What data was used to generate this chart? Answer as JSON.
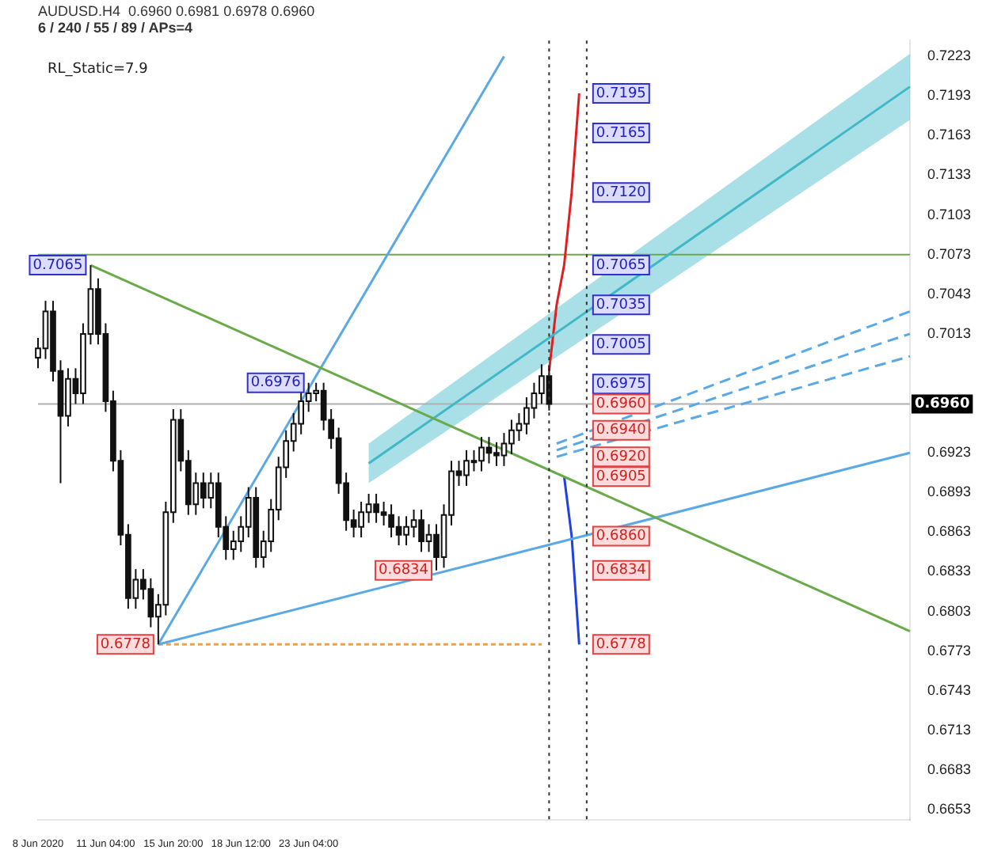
{
  "chart_data": {
    "type": "candlestick",
    "title": "AUDUSD.H4  0.6960 0.6981 0.6978 0.6960",
    "subtitle": "6 / 240 / 55 / 89 / APs=4",
    "annotations": [
      "RL_Static=7.9",
      {
        "text": "0.7065",
        "y": 0.7065
      },
      {
        "text": "0.6976",
        "y": 0.6976
      },
      {
        "text": "0.6834",
        "y": 0.6834
      },
      {
        "text": "0.6778",
        "y": 0.6778
      },
      {
        "text": "0.7195",
        "y": 0.7195
      },
      {
        "text": "0.7165",
        "y": 0.7165
      },
      {
        "text": "0.7120",
        "y": 0.712
      },
      {
        "text": "0.7065",
        "y": 0.7065
      },
      {
        "text": "0.7035",
        "y": 0.7035
      },
      {
        "text": "0.7005",
        "y": 0.7005
      },
      {
        "text": "0.6975",
        "y": 0.6975
      },
      {
        "text": "0.6960",
        "y": 0.696
      },
      {
        "text": "0.6940",
        "y": 0.694
      },
      {
        "text": "0.6920",
        "y": 0.692
      },
      {
        "text": "0.6905",
        "y": 0.6905
      },
      {
        "text": "0.6860",
        "y": 0.686
      },
      {
        "text": "0.6834",
        "y": 0.6834
      },
      {
        "text": "0.6778",
        "y": 0.6778
      }
    ],
    "categories": [
      "8 Jun 2020",
      null,
      null,
      null,
      null,
      null,
      null,
      null,
      null,
      "11 Jun 04:00",
      null,
      null,
      null,
      null,
      null,
      null,
      null,
      null,
      "15 Jun 20:00",
      null,
      null,
      null,
      null,
      null,
      null,
      null,
      null,
      "18 Jun 12:00",
      null,
      null,
      null,
      null,
      null,
      null,
      null,
      null,
      "23 Jun 04:00",
      null,
      null,
      null,
      null,
      null,
      null,
      null,
      null,
      null,
      null,
      null,
      null,
      null,
      null,
      null,
      null,
      null,
      null,
      null,
      null,
      null,
      null,
      null,
      null,
      null,
      null,
      null,
      null,
      null,
      null,
      null,
      null,
      null,
      null,
      null,
      null,
      null,
      null,
      null,
      null,
      null,
      null,
      null,
      null,
      null,
      null,
      null,
      null,
      null,
      null,
      null,
      null,
      null,
      null,
      null,
      null,
      null,
      null,
      null,
      null,
      null,
      null,
      null,
      null,
      null,
      null,
      null,
      null,
      null,
      null,
      null,
      null,
      null,
      null,
      null,
      null,
      null,
      null,
      null,
      null
    ],
    "ohlc": [
      [
        0.6995,
        0.701,
        0.6987,
        0.7002
      ],
      [
        0.7002,
        0.7038,
        0.6994,
        0.703
      ],
      [
        0.703,
        0.7038,
        0.6977,
        0.6985
      ],
      [
        0.6985,
        0.6993,
        0.69,
        0.6951
      ],
      [
        0.6951,
        0.6987,
        0.6943,
        0.6979
      ],
      [
        0.6979,
        0.6987,
        0.696,
        0.6968
      ],
      [
        0.6968,
        0.7021,
        0.696,
        0.7013
      ],
      [
        0.7013,
        0.7065,
        0.7005,
        0.7047
      ],
      [
        0.7047,
        0.7055,
        0.7005,
        0.7013
      ],
      [
        0.7013,
        0.7021,
        0.6954,
        0.6962
      ],
      [
        0.6962,
        0.697,
        0.6909,
        0.6917
      ],
      [
        0.6917,
        0.6925,
        0.6853,
        0.6861
      ],
      [
        0.6861,
        0.6869,
        0.6805,
        0.6813
      ],
      [
        0.6813,
        0.6835,
        0.6805,
        0.6827
      ],
      [
        0.6827,
        0.6835,
        0.6812,
        0.682
      ],
      [
        0.682,
        0.6828,
        0.6791,
        0.6799
      ],
      [
        0.6799,
        0.6816,
        0.6778,
        0.6808
      ],
      [
        0.6808,
        0.6886,
        0.68,
        0.6878
      ],
      [
        0.6878,
        0.6956,
        0.687,
        0.6948
      ],
      [
        0.6948,
        0.6956,
        0.6909,
        0.6917
      ],
      [
        0.6917,
        0.6925,
        0.6876,
        0.6884
      ],
      [
        0.6884,
        0.6908,
        0.6876,
        0.69
      ],
      [
        0.69,
        0.6908,
        0.6881,
        0.6889
      ],
      [
        0.6889,
        0.6908,
        0.6881,
        0.69
      ],
      [
        0.69,
        0.6908,
        0.6859,
        0.6867
      ],
      [
        0.6867,
        0.6875,
        0.6842,
        0.685
      ],
      [
        0.685,
        0.6864,
        0.6842,
        0.6856
      ],
      [
        0.6856,
        0.6875,
        0.6848,
        0.6867
      ],
      [
        0.6867,
        0.6897,
        0.6859,
        0.6889
      ],
      [
        0.6889,
        0.6897,
        0.6836,
        0.6844
      ],
      [
        0.6844,
        0.6864,
        0.6836,
        0.6856
      ],
      [
        0.6856,
        0.6888,
        0.6848,
        0.688
      ],
      [
        0.688,
        0.692,
        0.6872,
        0.6912
      ],
      [
        0.6912,
        0.694,
        0.6904,
        0.6932
      ],
      [
        0.6932,
        0.6953,
        0.6924,
        0.6945
      ],
      [
        0.6945,
        0.697,
        0.6937,
        0.6962
      ],
      [
        0.6962,
        0.6976,
        0.6954,
        0.6968
      ],
      [
        0.6968,
        0.6976,
        0.6962,
        0.697
      ],
      [
        0.697,
        0.6976,
        0.694,
        0.6948
      ],
      [
        0.6948,
        0.6956,
        0.6926,
        0.6934
      ],
      [
        0.6934,
        0.6942,
        0.6892,
        0.69
      ],
      [
        0.69,
        0.6908,
        0.6864,
        0.6872
      ],
      [
        0.6872,
        0.688,
        0.6859,
        0.6867
      ],
      [
        0.6867,
        0.6886,
        0.6859,
        0.6878
      ],
      [
        0.6878,
        0.6892,
        0.687,
        0.6884
      ],
      [
        0.6884,
        0.6892,
        0.687,
        0.6878
      ],
      [
        0.6878,
        0.6886,
        0.6868,
        0.6876
      ],
      [
        0.6876,
        0.6884,
        0.6859,
        0.6867
      ],
      [
        0.6867,
        0.6875,
        0.6853,
        0.6861
      ],
      [
        0.6861,
        0.6875,
        0.6853,
        0.6867
      ],
      [
        0.6867,
        0.688,
        0.6859,
        0.6872
      ],
      [
        0.6872,
        0.688,
        0.6848,
        0.6856
      ],
      [
        0.6856,
        0.6869,
        0.6848,
        0.6861
      ],
      [
        0.6861,
        0.6869,
        0.6834,
        0.6844
      ],
      [
        0.6844,
        0.6884,
        0.6836,
        0.6876
      ],
      [
        0.6876,
        0.6917,
        0.6868,
        0.6909
      ],
      [
        0.6909,
        0.6917,
        0.6898,
        0.6906
      ],
      [
        0.6906,
        0.6925,
        0.6898,
        0.6917
      ],
      [
        0.6917,
        0.6925,
        0.6909,
        0.6917
      ],
      [
        0.6917,
        0.6935,
        0.6909,
        0.6927
      ],
      [
        0.6927,
        0.6935,
        0.6915,
        0.6923
      ],
      [
        0.6923,
        0.6931,
        0.6913,
        0.6921
      ],
      [
        0.6921,
        0.6938,
        0.6913,
        0.693
      ],
      [
        0.693,
        0.6948,
        0.6922,
        0.694
      ],
      [
        0.694,
        0.6953,
        0.6932,
        0.6945
      ],
      [
        0.6945,
        0.6965,
        0.6937,
        0.6957
      ],
      [
        0.6957,
        0.6976,
        0.6949,
        0.6968
      ],
      [
        0.6968,
        0.699,
        0.696,
        0.6981
      ],
      [
        0.6981,
        0.6989,
        0.6955,
        0.696
      ],
      null,
      null,
      null,
      null,
      null,
      null,
      null,
      null,
      null,
      null,
      null,
      null,
      null,
      null,
      null,
      null,
      null,
      null,
      null,
      null,
      null,
      null,
      null,
      null,
      null,
      null,
      null,
      null,
      null,
      null,
      null,
      null,
      null,
      null,
      null,
      null,
      null,
      null,
      null,
      null,
      null,
      null,
      null,
      null,
      null,
      null,
      null,
      null
    ],
    "series": [
      {
        "type": "line",
        "color": "#6aaa4a",
        "values": [
          null,
          null,
          null,
          null,
          null,
          null,
          null,
          0.7065,
          null,
          null,
          null,
          null,
          null,
          null,
          null,
          null,
          null,
          null,
          null,
          null,
          null,
          null,
          null,
          null,
          null,
          null,
          null,
          null,
          null,
          null,
          null,
          null,
          null,
          null,
          null,
          null,
          null,
          null,
          null,
          null,
          null,
          null,
          null,
          null,
          null,
          null,
          null,
          null,
          null,
          null,
          null,
          null,
          null,
          null,
          null,
          null,
          null,
          null,
          null,
          null,
          null,
          null,
          null,
          null,
          null,
          null,
          null,
          null,
          null,
          null,
          null,
          null,
          null,
          null,
          null,
          null,
          null,
          null,
          null,
          null,
          null,
          null,
          null,
          null,
          null,
          null,
          null,
          null,
          null,
          null,
          null,
          null,
          null,
          null,
          null,
          null,
          null,
          null,
          null,
          null,
          null,
          null,
          null,
          null,
          null,
          null,
          null,
          null,
          null,
          null,
          null,
          null,
          null,
          null,
          null,
          null,
          0.6788
        ]
      },
      {
        "type": "line",
        "color": "#5aa9e6",
        "values": [
          null,
          null,
          null,
          null,
          null,
          null,
          null,
          null,
          null,
          null,
          null,
          null,
          null,
          null,
          null,
          null,
          0.6778,
          null,
          null,
          null,
          null,
          null,
          null,
          null,
          null,
          null,
          null,
          null,
          null,
          null,
          null,
          null,
          null,
          null,
          null,
          null,
          null,
          null,
          null,
          null,
          null,
          null,
          null,
          null,
          null,
          null,
          null,
          null,
          null,
          null,
          null,
          null,
          null,
          null,
          null,
          null,
          null,
          null,
          null,
          null,
          null,
          null,
          null,
          null,
          null,
          null,
          null,
          null,
          null,
          null,
          null,
          null,
          null,
          null,
          null,
          null,
          null,
          null,
          null,
          null,
          null,
          null,
          null,
          null,
          null,
          null,
          null,
          null,
          null,
          null,
          null,
          null,
          null,
          null,
          null,
          null,
          null,
          null,
          null,
          null,
          null,
          null,
          null,
          null,
          null,
          null,
          null,
          null,
          null,
          null,
          null,
          null,
          null,
          null,
          null,
          null,
          0.6923
        ]
      },
      {
        "type": "line",
        "color": "#5aa9e6",
        "values": [
          null,
          null,
          null,
          null,
          null,
          null,
          null,
          null,
          null,
          null,
          null,
          null,
          null,
          null,
          null,
          null,
          0.6778,
          null,
          null,
          null,
          null,
          null,
          null,
          null,
          null,
          null,
          null,
          null,
          null,
          null,
          null,
          null,
          null,
          null,
          null,
          null,
          null,
          null,
          null,
          null,
          null,
          null,
          null,
          null,
          null,
          null,
          null,
          null,
          null,
          null,
          null,
          null,
          null,
          null,
          null,
          null,
          null,
          null,
          null,
          null,
          null,
          null,
          0.7223,
          null,
          null,
          null,
          null,
          null,
          null,
          null,
          null,
          null,
          null,
          null,
          null,
          null,
          null,
          null,
          null,
          null,
          null,
          null,
          null,
          null,
          null,
          null,
          null,
          null,
          null,
          null,
          null,
          null,
          null,
          null,
          null,
          null,
          null,
          null,
          null,
          null,
          null,
          null,
          null,
          null,
          null,
          null,
          null,
          null,
          null,
          null,
          null,
          null,
          null,
          null,
          null,
          null,
          null
        ]
      },
      {
        "type": "line",
        "color": "#f0a040",
        "line_style": "dotted",
        "values": [
          null,
          null,
          null,
          null,
          null,
          null,
          null,
          null,
          null,
          null,
          null,
          null,
          null,
          null,
          null,
          null,
          0.6778,
          null,
          null,
          null,
          null,
          null,
          null,
          null,
          null,
          null,
          null,
          null,
          null,
          null,
          null,
          null,
          null,
          null,
          null,
          null,
          null,
          null,
          null,
          null,
          null,
          null,
          null,
          null,
          null,
          null,
          null,
          null,
          null,
          null,
          null,
          null,
          null,
          null,
          null,
          null,
          null,
          null,
          null,
          null,
          null,
          null,
          null,
          null,
          null,
          null,
          null,
          0.6778,
          null,
          null,
          null,
          null,
          null,
          null,
          null,
          null,
          null,
          null,
          null,
          null,
          null,
          null,
          null,
          null,
          null,
          null,
          null,
          null,
          null,
          null,
          null,
          null,
          null,
          null,
          null,
          null,
          null,
          null,
          null,
          null,
          null,
          null,
          null,
          null,
          null,
          null,
          null,
          null,
          null,
          null,
          null,
          null,
          null,
          null,
          null,
          null,
          null
        ]
      },
      {
        "type": "line",
        "color": "#40b8c8",
        "values": [
          null,
          null,
          null,
          null,
          null,
          null,
          null,
          null,
          null,
          null,
          null,
          null,
          null,
          null,
          null,
          null,
          null,
          null,
          null,
          null,
          null,
          null,
          null,
          null,
          null,
          null,
          null,
          null,
          null,
          null,
          null,
          null,
          null,
          null,
          null,
          null,
          null,
          null,
          null,
          null,
          null,
          null,
          null,
          null,
          0.6915,
          null,
          null,
          null,
          null,
          null,
          null,
          null,
          null,
          null,
          null,
          null,
          null,
          null,
          null,
          null,
          null,
          null,
          null,
          null,
          null,
          null,
          null,
          null,
          null,
          null,
          null,
          null,
          null,
          null,
          null,
          null,
          null,
          null,
          null,
          null,
          null,
          null,
          null,
          null,
          null,
          null,
          null,
          null,
          null,
          null,
          null,
          null,
          null,
          null,
          null,
          null,
          null,
          null,
          null,
          null,
          null,
          null,
          null,
          null,
          null,
          null,
          null,
          null,
          null,
          null,
          null,
          null,
          null,
          null,
          null,
          null,
          0.72
        ],
        "lower": [
          null,
          null,
          null,
          null,
          null,
          null,
          null,
          null,
          null,
          null,
          null,
          null,
          null,
          null,
          null,
          null,
          null,
          null,
          null,
          null,
          null,
          null,
          null,
          null,
          null,
          null,
          null,
          null,
          null,
          null,
          null,
          null,
          null,
          null,
          null,
          null,
          null,
          null,
          null,
          null,
          null,
          null,
          null,
          null,
          0.69,
          null,
          null,
          null,
          null,
          null,
          null,
          null,
          null,
          null,
          null,
          null,
          null,
          null,
          null,
          null,
          null,
          null,
          null,
          null,
          null,
          null,
          null,
          null,
          null,
          null,
          null,
          null,
          null,
          null,
          null,
          null,
          null,
          null,
          null,
          null,
          null,
          null,
          null,
          null,
          null,
          null,
          null,
          null,
          null,
          null,
          null,
          null,
          null,
          null,
          null,
          null,
          null,
          null,
          null,
          null,
          null,
          null,
          null,
          null,
          null,
          null,
          null,
          null,
          null,
          null,
          null,
          null,
          null,
          null,
          null,
          null,
          0.7175
        ],
        "upper": [
          null,
          null,
          null,
          null,
          null,
          null,
          null,
          null,
          null,
          null,
          null,
          null,
          null,
          null,
          null,
          null,
          null,
          null,
          null,
          null,
          null,
          null,
          null,
          null,
          null,
          null,
          null,
          null,
          null,
          null,
          null,
          null,
          null,
          null,
          null,
          null,
          null,
          null,
          null,
          null,
          null,
          null,
          null,
          null,
          0.693,
          null,
          null,
          null,
          null,
          null,
          null,
          null,
          null,
          null,
          null,
          null,
          null,
          null,
          null,
          null,
          null,
          null,
          null,
          null,
          null,
          null,
          null,
          null,
          null,
          null,
          null,
          null,
          null,
          null,
          null,
          null,
          null,
          null,
          null,
          null,
          null,
          null,
          null,
          null,
          null,
          null,
          null,
          null,
          null,
          null,
          null,
          null,
          null,
          null,
          null,
          null,
          null,
          null,
          null,
          null,
          null,
          null,
          null,
          null,
          null,
          null,
          null,
          null,
          null,
          null,
          null,
          null,
          null,
          null,
          null,
          null,
          0.7225
        ]
      },
      {
        "type": "line",
        "color": "#5aa9e6",
        "line_style": "dashed",
        "values": [
          null,
          null,
          null,
          null,
          null,
          null,
          null,
          null,
          null,
          null,
          null,
          null,
          null,
          null,
          null,
          null,
          null,
          null,
          null,
          null,
          null,
          null,
          null,
          null,
          null,
          null,
          null,
          null,
          null,
          null,
          null,
          null,
          null,
          null,
          null,
          null,
          null,
          null,
          null,
          null,
          null,
          null,
          null,
          null,
          null,
          null,
          null,
          null,
          null,
          null,
          null,
          null,
          null,
          null,
          null,
          null,
          null,
          null,
          null,
          null,
          null,
          null,
          null,
          null,
          null,
          null,
          null,
          null,
          null,
          0.693,
          null,
          null,
          null,
          null,
          null,
          null,
          null,
          null,
          null,
          null,
          null,
          null,
          null,
          null,
          null,
          null,
          null,
          null,
          null,
          null,
          null,
          null,
          null,
          null,
          null,
          null,
          null,
          null,
          null,
          null,
          null,
          null,
          null,
          null,
          null,
          null,
          null,
          null,
          null,
          null,
          null,
          null,
          null,
          null,
          null,
          null,
          0.703
        ]
      },
      {
        "type": "line",
        "color": "#5aa9e6",
        "line_style": "dashed",
        "values": [
          null,
          null,
          null,
          null,
          null,
          null,
          null,
          null,
          null,
          null,
          null,
          null,
          null,
          null,
          null,
          null,
          null,
          null,
          null,
          null,
          null,
          null,
          null,
          null,
          null,
          null,
          null,
          null,
          null,
          null,
          null,
          null,
          null,
          null,
          null,
          null,
          null,
          null,
          null,
          null,
          null,
          null,
          null,
          null,
          null,
          null,
          null,
          null,
          null,
          null,
          null,
          null,
          null,
          null,
          null,
          null,
          null,
          null,
          null,
          null,
          null,
          null,
          null,
          null,
          null,
          null,
          null,
          null,
          null,
          0.6925,
          null,
          null,
          null,
          null,
          null,
          null,
          null,
          null,
          null,
          null,
          null,
          null,
          null,
          null,
          null,
          null,
          null,
          null,
          null,
          null,
          null,
          null,
          null,
          null,
          null,
          null,
          null,
          null,
          null,
          null,
          null,
          null,
          null,
          null,
          null,
          null,
          null,
          null,
          null,
          null,
          null,
          null,
          null,
          null,
          null,
          null,
          0.7013
        ]
      },
      {
        "type": "line",
        "color": "#5aa9e6",
        "line_style": "dashed",
        "values": [
          null,
          null,
          null,
          null,
          null,
          null,
          null,
          null,
          null,
          null,
          null,
          null,
          null,
          null,
          null,
          null,
          null,
          null,
          null,
          null,
          null,
          null,
          null,
          null,
          null,
          null,
          null,
          null,
          null,
          null,
          null,
          null,
          null,
          null,
          null,
          null,
          null,
          null,
          null,
          null,
          null,
          null,
          null,
          null,
          null,
          null,
          null,
          null,
          null,
          null,
          null,
          null,
          null,
          null,
          null,
          null,
          null,
          null,
          null,
          null,
          null,
          null,
          null,
          null,
          null,
          null,
          null,
          null,
          null,
          0.692,
          null,
          null,
          null,
          null,
          null,
          null,
          null,
          null,
          null,
          null,
          null,
          null,
          null,
          null,
          null,
          null,
          null,
          null,
          null,
          null,
          null,
          null,
          null,
          null,
          null,
          null,
          null,
          null,
          null,
          null,
          null,
          null,
          null,
          null,
          null,
          null,
          null,
          null,
          null,
          null,
          null,
          null,
          null,
          null,
          null,
          null,
          0.6996
        ]
      },
      {
        "type": "line",
        "color": "#e02020",
        "values": [
          null,
          null,
          null,
          null,
          null,
          null,
          null,
          null,
          null,
          null,
          null,
          null,
          null,
          null,
          null,
          null,
          null,
          null,
          null,
          null,
          null,
          null,
          null,
          null,
          null,
          null,
          null,
          null,
          null,
          null,
          null,
          null,
          null,
          null,
          null,
          null,
          null,
          null,
          null,
          null,
          null,
          null,
          null,
          null,
          null,
          null,
          null,
          null,
          null,
          null,
          null,
          null,
          null,
          null,
          null,
          null,
          null,
          null,
          null,
          null,
          null,
          null,
          null,
          null,
          null,
          null,
          null,
          null,
          0.6985,
          0.7035,
          0.7065,
          0.712,
          0.7195,
          null,
          null,
          null,
          null,
          null,
          null,
          null,
          null,
          null,
          null,
          null,
          null,
          null,
          null,
          null,
          null,
          null,
          null,
          null,
          null,
          null,
          null,
          null,
          null,
          null,
          null,
          null,
          null,
          null,
          null,
          null,
          null,
          null,
          null,
          null,
          null,
          null,
          null,
          null,
          null,
          null,
          null,
          null,
          null
        ]
      },
      {
        "type": "line",
        "color": "#2040e0",
        "values": [
          null,
          null,
          null,
          null,
          null,
          null,
          null,
          null,
          null,
          null,
          null,
          null,
          null,
          null,
          null,
          null,
          null,
          null,
          null,
          null,
          null,
          null,
          null,
          null,
          null,
          null,
          null,
          null,
          null,
          null,
          null,
          null,
          null,
          null,
          null,
          null,
          null,
          null,
          null,
          null,
          null,
          null,
          null,
          null,
          null,
          null,
          null,
          null,
          null,
          null,
          null,
          null,
          null,
          null,
          null,
          null,
          null,
          null,
          null,
          null,
          null,
          null,
          null,
          null,
          null,
          null,
          null,
          null,
          null,
          null,
          0.6905,
          0.686,
          0.6778,
          null,
          null,
          null,
          null,
          null,
          null,
          null,
          null,
          null,
          null,
          null,
          null,
          null,
          null,
          null,
          null,
          null,
          null,
          null,
          null,
          null,
          null,
          null,
          null,
          null,
          null,
          null,
          null,
          null,
          null,
          null,
          null,
          null,
          null,
          null,
          null,
          null,
          null,
          null,
          null,
          null,
          null,
          null,
          null
        ]
      }
    ],
    "ref_lines": [
      {
        "axis": "y",
        "value": 0.7073,
        "color": "#6aaa4a"
      },
      {
        "axis": "y",
        "value": 0.696,
        "label": "0.6960",
        "color": "#b0b0b0"
      }
    ],
    "ylim": [
      0.6645,
      0.7235
    ],
    "yticks": [
      0.6653,
      0.6683,
      0.6713,
      0.6743,
      0.6773,
      0.6803,
      0.6833,
      0.6863,
      0.6893,
      0.6923,
      0.7013,
      0.7043,
      0.7073,
      0.7103,
      0.7133,
      0.7163,
      0.7193,
      0.7223
    ],
    "grid": false,
    "legend": false,
    "marker": "none"
  }
}
